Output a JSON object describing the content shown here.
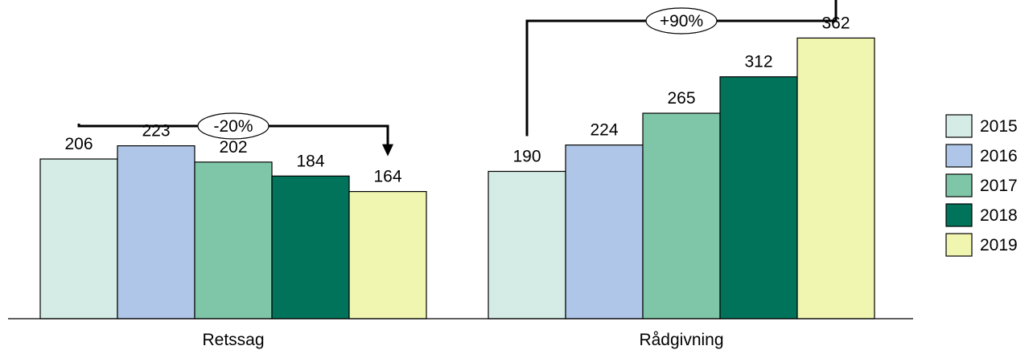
{
  "chart_data": {
    "type": "bar",
    "categories": [
      "Retssag",
      "Rådgivning"
    ],
    "series": [
      {
        "name": "2015",
        "values": [
          206,
          190
        ]
      },
      {
        "name": "2016",
        "values": [
          223,
          224
        ]
      },
      {
        "name": "2017",
        "values": [
          202,
          265
        ]
      },
      {
        "name": "2018",
        "values": [
          184,
          312
        ]
      },
      {
        "name": "2019",
        "values": [
          164,
          362
        ]
      }
    ],
    "title": "",
    "xlabel": "",
    "ylabel": "",
    "ylim": [
      0,
      380
    ],
    "grid": false,
    "legend_position": "right",
    "data_labels": true,
    "annotations": [
      {
        "category": "Retssag",
        "from_series": "2015",
        "to_series": "2019",
        "label": "-20%"
      },
      {
        "category": "Rådgivning",
        "from_series": "2015",
        "to_series": "2019",
        "label": "+90%"
      }
    ],
    "colors": {
      "2015": "#d5ebe6",
      "2016": "#afc6e8",
      "2017": "#7fc6a9",
      "2018": "#00735a",
      "2019": "#f0f5b0"
    }
  }
}
